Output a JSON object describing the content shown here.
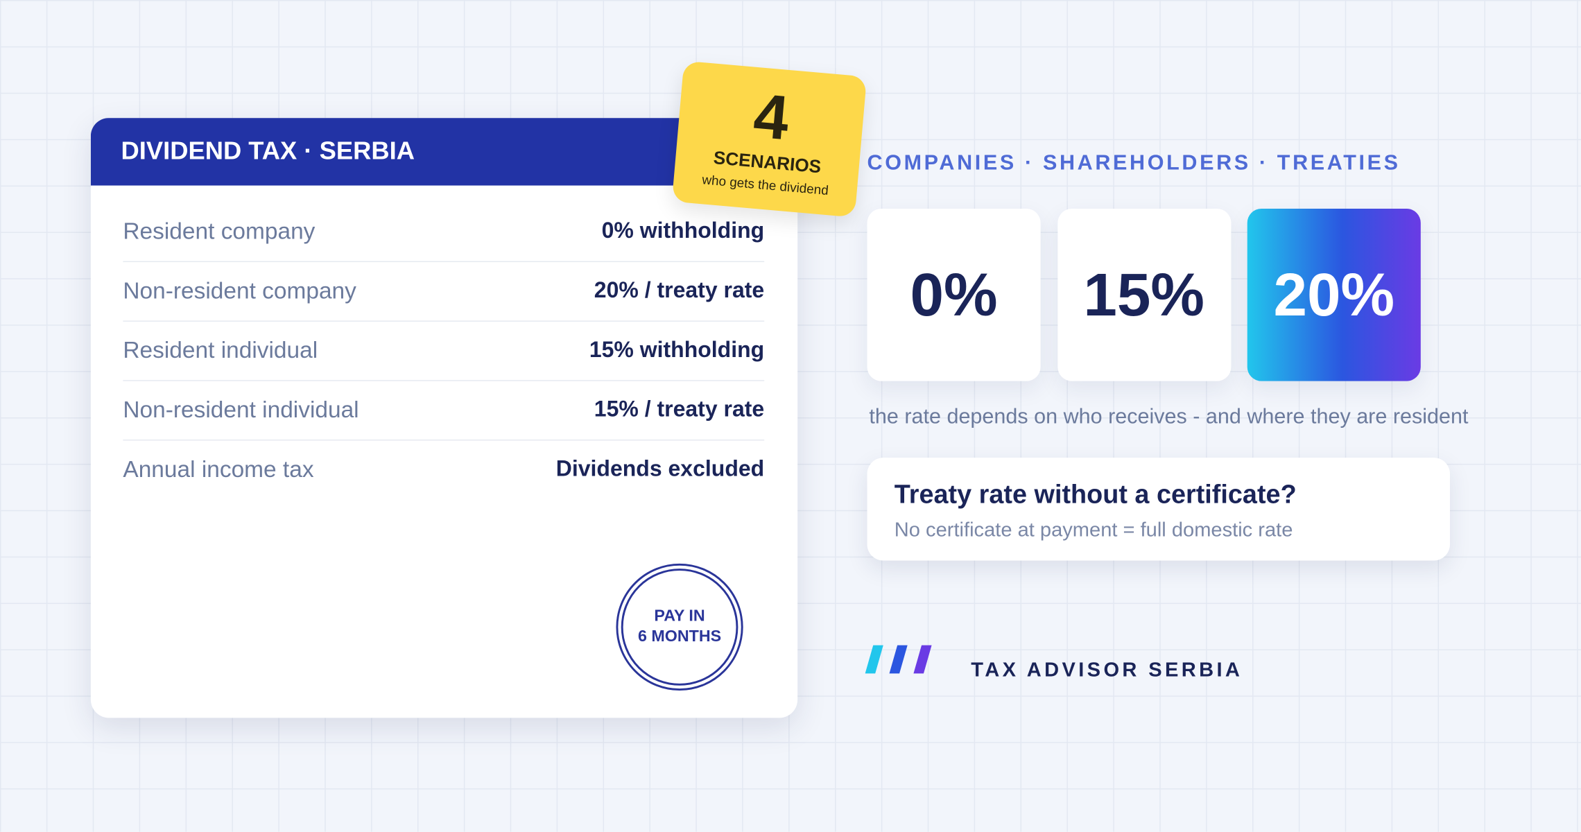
{
  "card": {
    "title": "DIVIDEND TAX · SERBIA",
    "rows": [
      [
        "Resident company",
        "0% withholding"
      ],
      [
        "Non-resident company",
        "20% / treaty rate"
      ],
      [
        "Resident individual",
        "15% withholding"
      ],
      [
        "Non-resident individual",
        "15% / treaty rate"
      ],
      [
        "Annual income tax",
        "Dividends excluded"
      ]
    ],
    "stamp": [
      "PAY IN",
      "6 MONTHS"
    ]
  },
  "badge": {
    "number": "4",
    "label": "SCENARIOS",
    "sub": "who gets the dividend"
  },
  "tagline": "COMPANIES · SHAREHOLDERS · TREATIES",
  "rates": [
    "0%",
    "15%",
    "20%"
  ],
  "note": "the rate depends on who receives - and where they are resident",
  "callout": {
    "title": "Treaty rate without a certificate?",
    "text": "No certificate at payment = full domestic rate"
  },
  "brand": "TAX ADVISOR SERBIA"
}
